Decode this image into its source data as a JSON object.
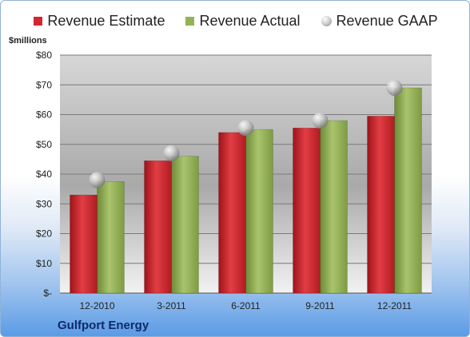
{
  "chart_data": {
    "type": "bar",
    "categories": [
      "12-2010",
      "3-2011",
      "6-2011",
      "9-2011",
      "12-2011"
    ],
    "series": [
      {
        "name": "Revenue Estimate",
        "values": [
          33,
          44.5,
          54,
          55.5,
          59.5
        ],
        "color": "#d3262e"
      },
      {
        "name": "Revenue Actual",
        "values": [
          37.5,
          46,
          55,
          58,
          69
        ],
        "color": "#93b356"
      },
      {
        "name": "Revenue GAAP",
        "values": [
          38,
          47,
          55.5,
          58,
          69
        ],
        "color": "#b8b8b8",
        "marker": "sphere"
      }
    ],
    "ylabel": "$millions",
    "ylim": [
      0,
      80
    ],
    "yticks": [
      0,
      10,
      20,
      30,
      40,
      50,
      60,
      70,
      80
    ],
    "ytick_labels": [
      "$-",
      "$10",
      "$20",
      "$30",
      "$40",
      "$50",
      "$60",
      "$70",
      "$80"
    ],
    "grid": true,
    "legend": "top"
  },
  "footer": {
    "company": "Gulfport Energy"
  }
}
